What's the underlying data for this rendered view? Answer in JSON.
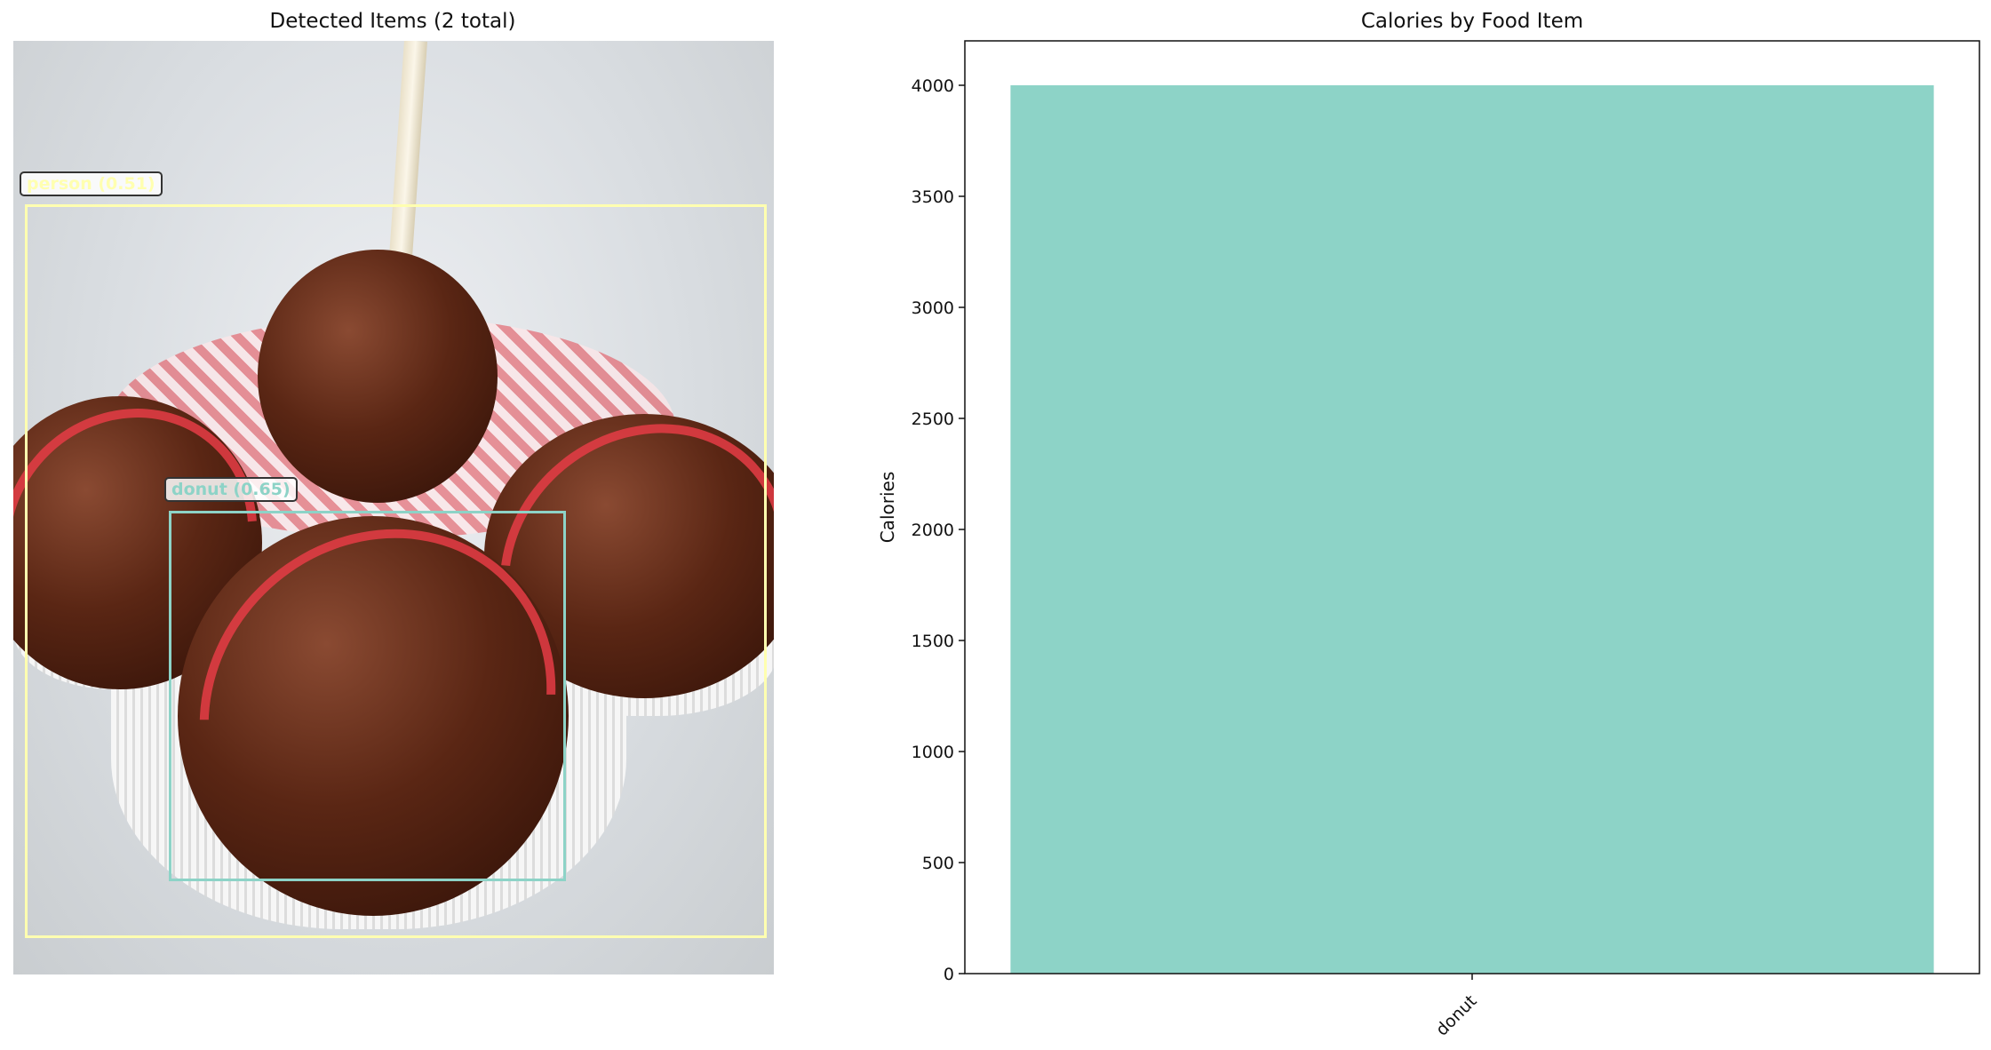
{
  "left_panel": {
    "title": "Detected Items (2 total)",
    "detections": [
      {
        "label": "person (0.51)",
        "color": "#ffffb0"
      },
      {
        "label": "donut (0.65)",
        "color": "#8dd3c7"
      }
    ]
  },
  "chart_data": {
    "type": "bar",
    "title": "Calories by Food Item",
    "xlabel": "",
    "ylabel": "Calories",
    "categories": [
      "donut"
    ],
    "values": [
      4000
    ],
    "ylim": [
      0,
      4200
    ],
    "yticks": [
      0,
      500,
      1000,
      1500,
      2000,
      2500,
      3000,
      3500,
      4000
    ],
    "bar_color": "#8dd3c7",
    "grid": false
  }
}
